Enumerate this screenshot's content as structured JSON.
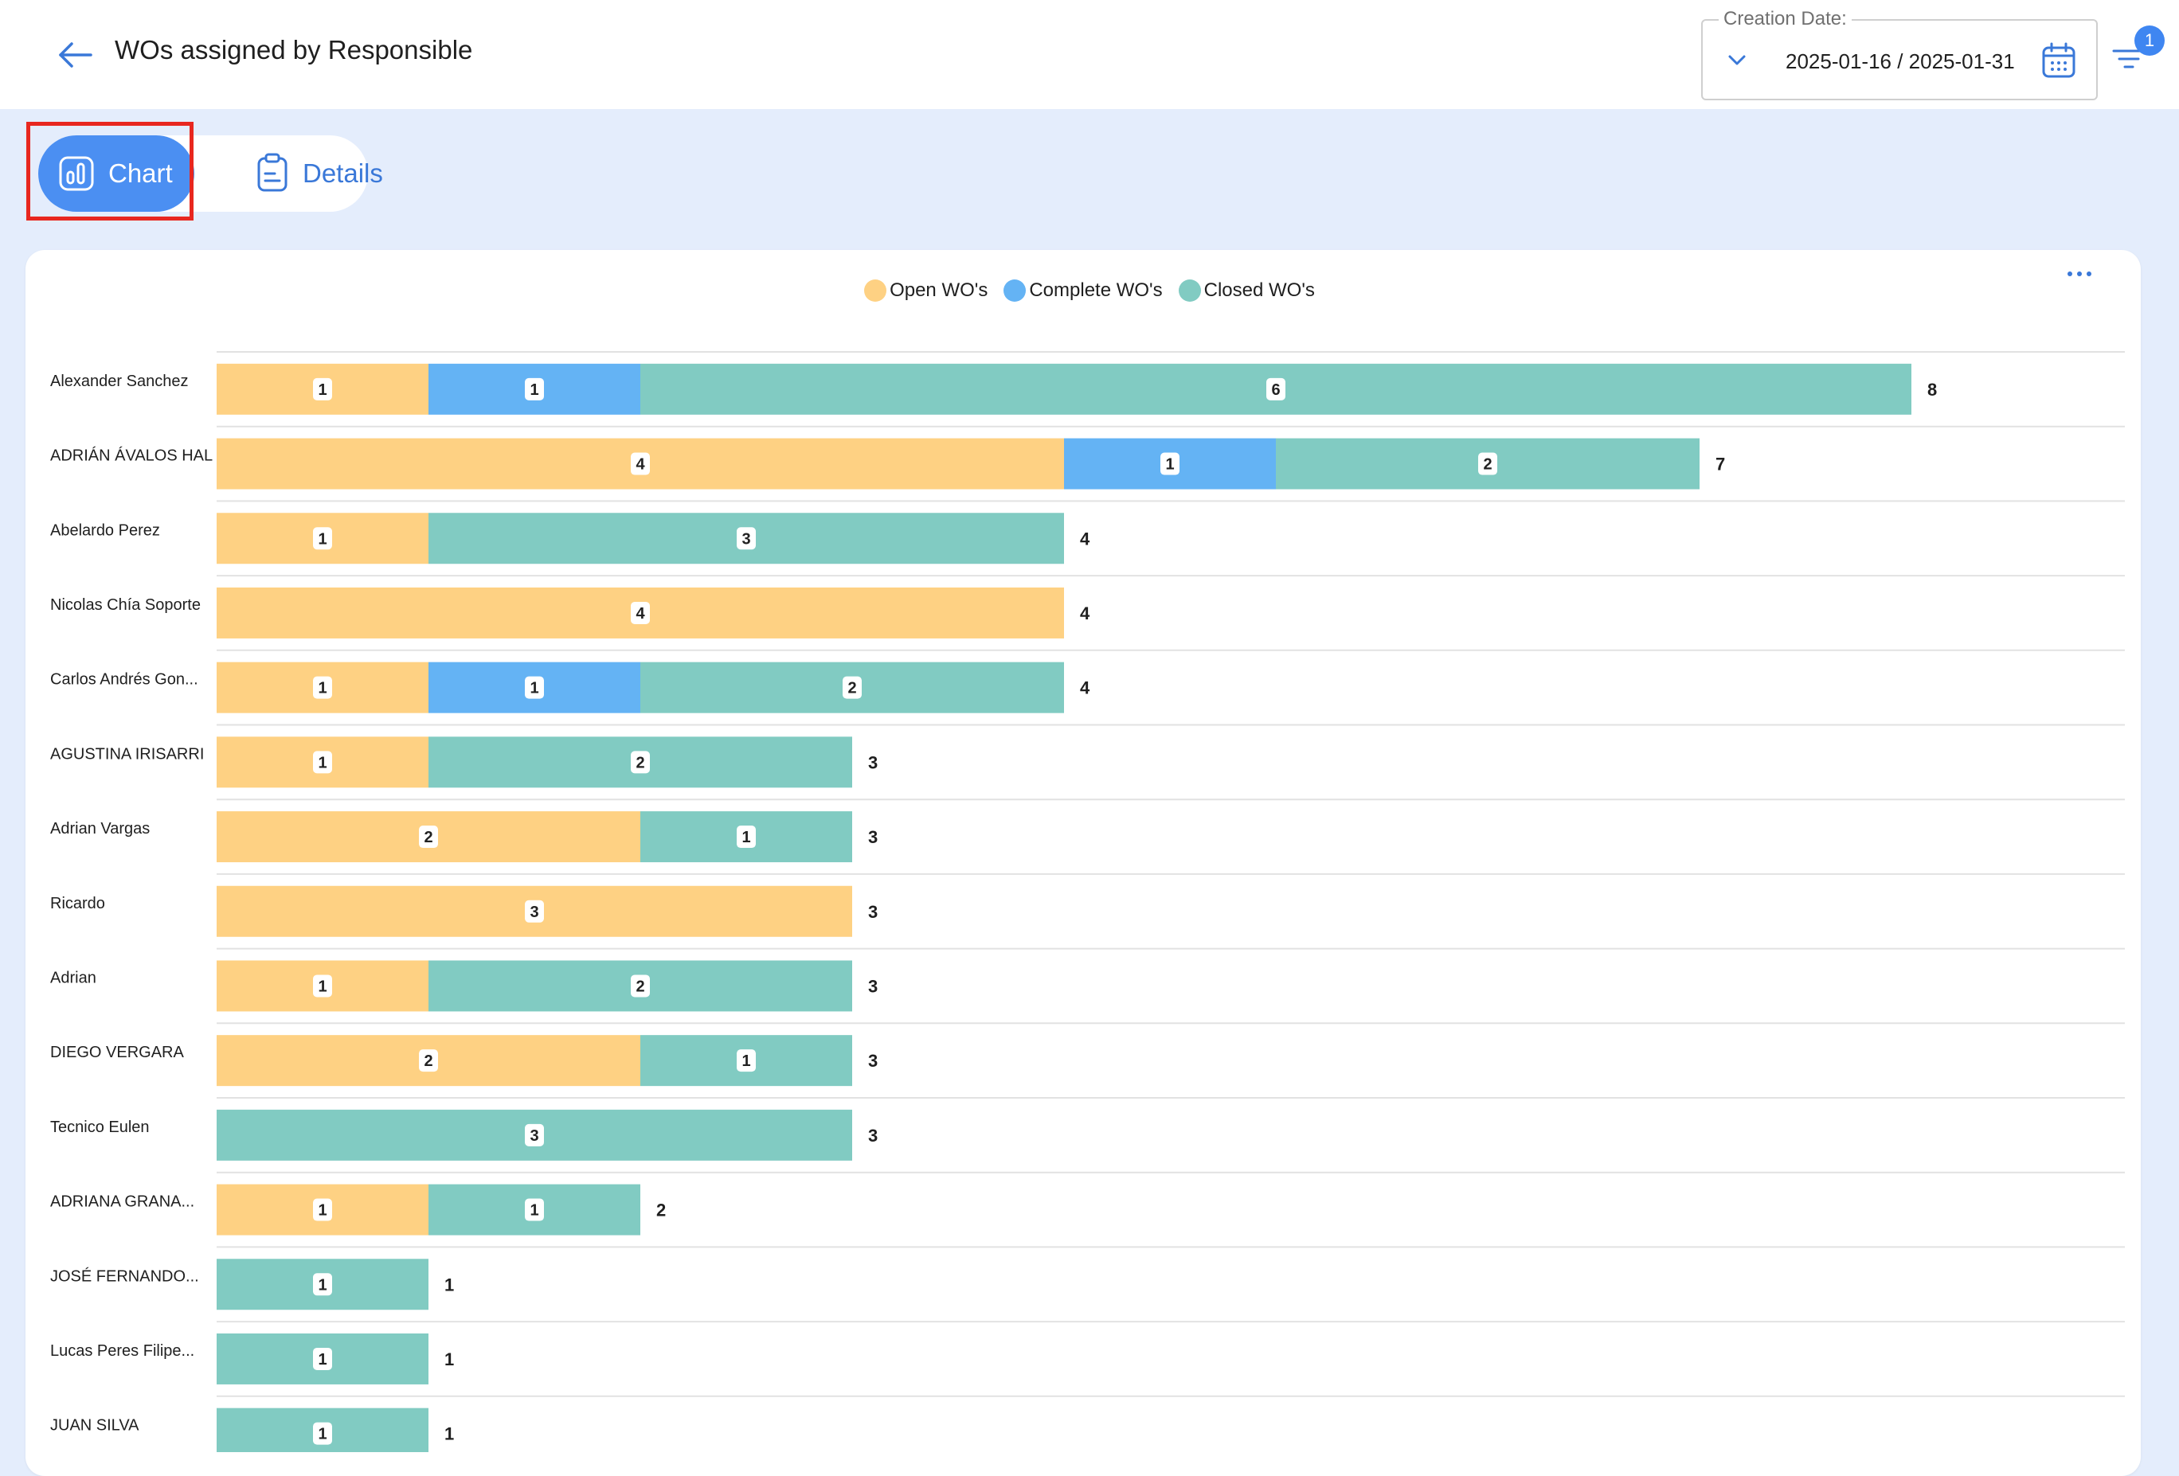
{
  "header": {
    "title": "WOs assigned by Responsible",
    "date_filter": {
      "label": "Creation Date:",
      "value": "2025-01-16 / 2025-01-31"
    },
    "filter_badge": "1"
  },
  "view_toggle": {
    "chart_label": "Chart",
    "details_label": "Details",
    "active": "Chart"
  },
  "colors": {
    "open": "#fed183",
    "complete": "#64b3f4",
    "closed": "#81cbc2",
    "accent": "#4b8ff2"
  },
  "chart_data": {
    "type": "bar",
    "orientation": "horizontal",
    "stacked": true,
    "legend": {
      "position": "top-center",
      "entries": [
        "Open WO's",
        "Complete WO's",
        "Closed WO's"
      ]
    },
    "grid": true,
    "categories": [
      "Alexander Sanchez",
      "ADRIÁN ÁVALOS HAL",
      "Abelardo Perez",
      "Nicolas Chía Soporte",
      "Carlos Andrés Gon...",
      "AGUSTINA IRISARRI",
      "Adrian Vargas",
      "Ricardo",
      "Adrian",
      "DIEGO VERGARA",
      "Tecnico Eulen",
      "ADRIANA GRANA...",
      "JOSÉ FERNANDO...",
      "Lucas Peres Filipe...",
      "JUAN SILVA"
    ],
    "series": [
      {
        "name": "Open WO's",
        "values": [
          1,
          4,
          1,
          4,
          1,
          1,
          2,
          3,
          1,
          2,
          0,
          1,
          0,
          0,
          0
        ]
      },
      {
        "name": "Complete WO's",
        "values": [
          1,
          1,
          0,
          0,
          1,
          0,
          0,
          0,
          0,
          0,
          0,
          0,
          0,
          0,
          0
        ]
      },
      {
        "name": "Closed WO's",
        "values": [
          6,
          2,
          3,
          0,
          2,
          2,
          1,
          0,
          2,
          1,
          3,
          1,
          1,
          1,
          1
        ]
      }
    ],
    "totals": [
      8,
      7,
      4,
      4,
      4,
      3,
      3,
      3,
      3,
      3,
      3,
      2,
      1,
      1,
      1
    ]
  }
}
